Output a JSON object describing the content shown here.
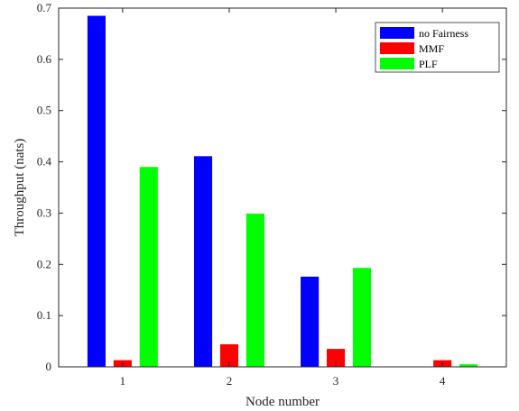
{
  "chart_data": {
    "type": "bar",
    "categories": [
      "1",
      "2",
      "3",
      "4"
    ],
    "series": [
      {
        "name": "no Fairness",
        "color": "#0000ff",
        "values": [
          0.685,
          0.411,
          0.176,
          0.0
        ]
      },
      {
        "name": "MMF",
        "color": "#ff0000",
        "values": [
          0.013,
          0.044,
          0.035,
          0.013
        ]
      },
      {
        "name": "PLF",
        "color": "#00ff00",
        "values": [
          0.39,
          0.299,
          0.193,
          0.005
        ]
      }
    ],
    "xlabel": "Node number",
    "ylabel": "Throughput (nats)",
    "ylim": [
      0,
      0.7
    ],
    "yticks": [
      0,
      0.1,
      0.2,
      0.3,
      0.4,
      0.5,
      0.6,
      0.7
    ],
    "yticklabels": [
      "0",
      "0.1",
      "0.2",
      "0.3",
      "0.4",
      "0.5",
      "0.6",
      "0.7"
    ],
    "grid": false,
    "legend_position": "top-right"
  }
}
